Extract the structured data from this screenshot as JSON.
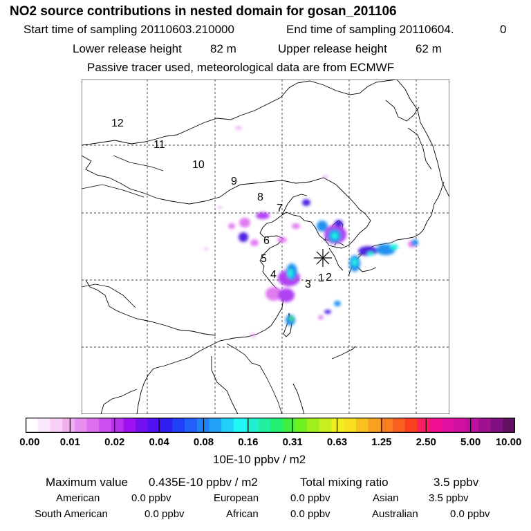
{
  "title": "NO2 source contributions in nested domain for gosan_201106",
  "header": {
    "start_label": "Start time of sampling 20110603.210000",
    "end_label": "End time of sampling 20110604.",
    "end_suffix": "0",
    "lower_release": "Lower release height",
    "lower_value": "82 m",
    "upper_release": "Upper release height",
    "upper_value": "62 m",
    "note": "Passive tracer used, meteorological data are from ECMWF"
  },
  "map": {
    "receptor_marker": "asterisk-icon",
    "hour_labels": [
      "12",
      "11",
      "10",
      "9",
      "8",
      "7",
      "6",
      "5",
      "4",
      "3",
      "2",
      "1"
    ],
    "colors": {
      "coast": "#000000",
      "grid": "#000000",
      "plume_light": "#e07cf0",
      "plume_mid": "#b040f0",
      "plume_dark": "#5020e0",
      "plume_blue": "#2090f0",
      "plume_cyan": "#20f0e0",
      "plume_green": "#40e040"
    }
  },
  "colorbar": {
    "colors": [
      "#ffffff",
      "#fce8fc",
      "#f8d0f8",
      "#f0b0f0",
      "#e890f0",
      "#dc70f0",
      "#cc50f0",
      "#b830f0",
      "#a010f0",
      "#7010f0",
      "#5010f0",
      "#3020f0",
      "#2040f8",
      "#2060f8",
      "#2080f8",
      "#20a0f8",
      "#20d0f8",
      "#20f8f8",
      "#20f0d0",
      "#20f0a0",
      "#20f070",
      "#40f040",
      "#70f020",
      "#a0f020",
      "#c8f020",
      "#f0f020",
      "#f8e020",
      "#f8c020",
      "#f8a020",
      "#f88020",
      "#f86020",
      "#f84020",
      "#f82060",
      "#f01090",
      "#e010a0",
      "#d010a0",
      "#c010a0",
      "#a01090",
      "#801080",
      "#601060"
    ],
    "labels": [
      "0.00",
      "0.01",
      "0.02",
      "0.04",
      "0.08",
      "0.16",
      "0.31",
      "0.63",
      "1.25",
      "2.50",
      "5.00",
      "10.00"
    ],
    "unit": "10E-10 ppbv / m2"
  },
  "footer": {
    "max_label": "Maximum value",
    "max_value": "0.435E-10 ppbv / m2",
    "total_label": "Total mixing ratio",
    "total_value": "3.5 ppbv",
    "regions": [
      {
        "name": "American",
        "value": "0.0 ppbv"
      },
      {
        "name": "European",
        "value": "0.0 ppbv"
      },
      {
        "name": "Asian",
        "value": "3.5 ppbv"
      },
      {
        "name": "South American",
        "value": "0.0 ppbv"
      },
      {
        "name": "African",
        "value": "0.0 ppbv"
      },
      {
        "name": "Australian",
        "value": "0.0 ppbv"
      }
    ]
  }
}
